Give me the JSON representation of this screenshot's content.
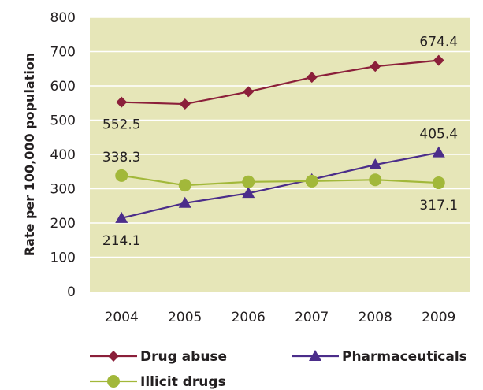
{
  "chart_data": {
    "type": "line",
    "ylabel": "Rate per 100,000 population",
    "xlabel": "",
    "x": [
      "2004",
      "2005",
      "2006",
      "2007",
      "2008",
      "2009"
    ],
    "ylim": [
      0,
      800
    ],
    "yticks": [
      "0",
      "100",
      "200",
      "300",
      "400",
      "500",
      "600",
      "700",
      "800"
    ],
    "grid": "horizontal",
    "plot_background": "#e6e6b8",
    "legend_position": "bottom",
    "series": [
      {
        "name": "Drug abuse",
        "values": [
          552.5,
          547,
          583,
          625,
          657,
          674.4
        ],
        "color": "#8b1f3a",
        "marker": "diamond"
      },
      {
        "name": "Pharmaceuticals",
        "values": [
          214.1,
          258,
          287,
          327,
          370,
          405.4
        ],
        "color": "#4b2d8a",
        "marker": "triangle"
      },
      {
        "name": "Illicit drugs",
        "values": [
          338.3,
          310,
          320,
          322,
          326,
          317.1
        ],
        "color": "#a2b83a",
        "marker": "circle"
      }
    ],
    "data_labels": [
      {
        "series": 0,
        "index": 0,
        "text": "552.5",
        "position": "below"
      },
      {
        "series": 0,
        "index": 5,
        "text": "674.4",
        "position": "above"
      },
      {
        "series": 1,
        "index": 0,
        "text": "214.1",
        "position": "below"
      },
      {
        "series": 1,
        "index": 5,
        "text": "405.4",
        "position": "above"
      },
      {
        "series": 2,
        "index": 0,
        "text": "338.3",
        "position": "above"
      },
      {
        "series": 2,
        "index": 5,
        "text": "317.1",
        "position": "below"
      }
    ]
  }
}
